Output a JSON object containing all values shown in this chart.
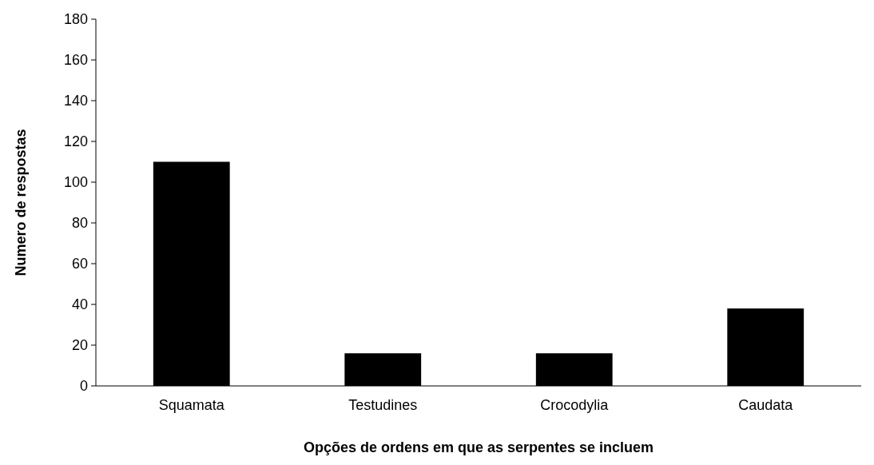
{
  "chart_data": {
    "type": "bar",
    "xlabel": "Opções de ordens em que as serpentes se incluem",
    "ylabel": "Numero de respostas",
    "categories": [
      "Squamata",
      "Testudines",
      "Crocodylia",
      "Caudata"
    ],
    "values": [
      110,
      16,
      16,
      38
    ],
    "color": "#000000",
    "ylim": [
      0,
      180
    ],
    "yticks": [
      0,
      20,
      40,
      60,
      80,
      100,
      120,
      140,
      160,
      180
    ],
    "grid": false
  }
}
